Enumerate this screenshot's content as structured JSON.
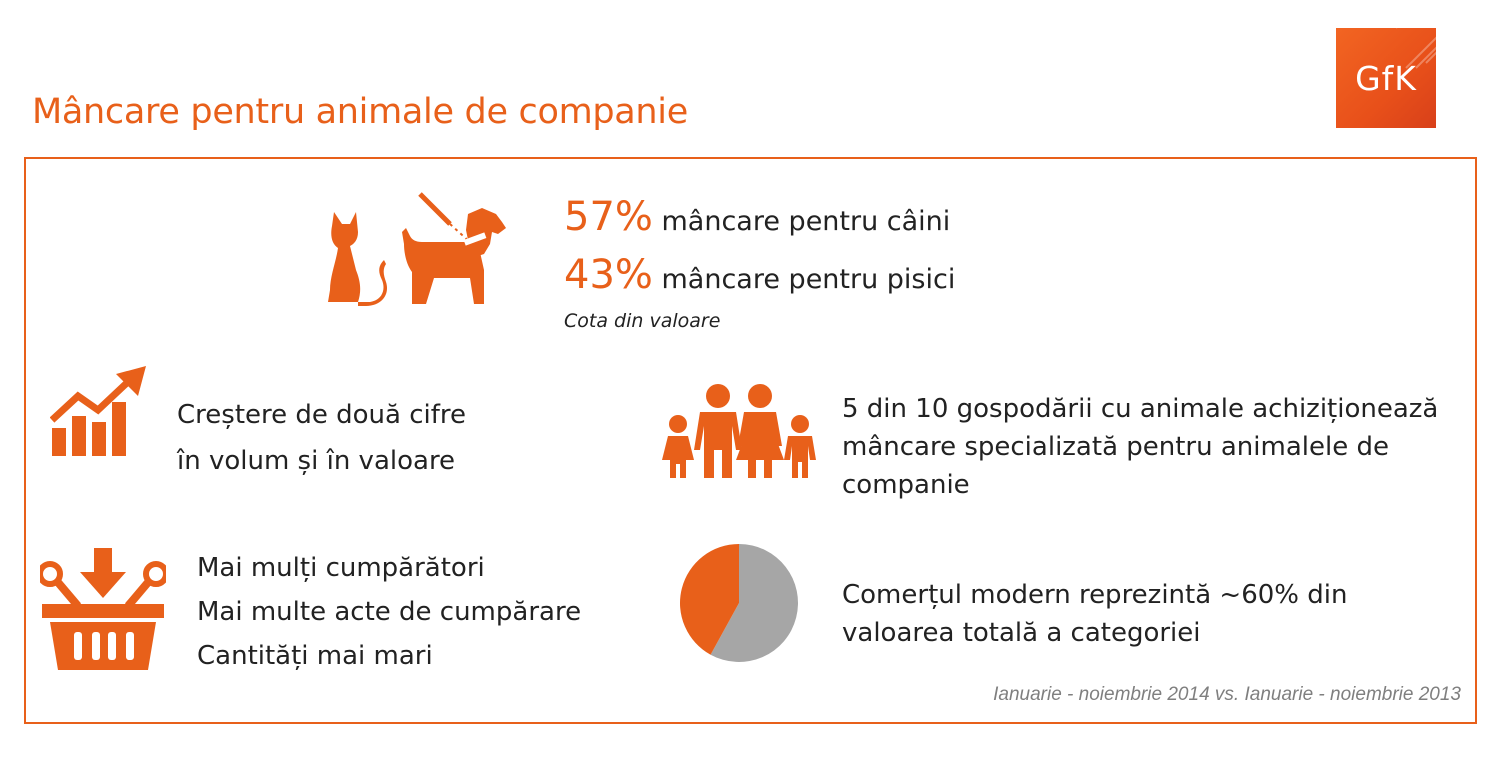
{
  "title": "Mâncare pentru animale de companie",
  "logo": {
    "text": "GfK",
    "color": "#f26522"
  },
  "colors": {
    "accent": "#e8601a",
    "pie_gray": "#a6a6a6"
  },
  "icons": [
    "cat-icon",
    "dog-leash-icon",
    "growth-chart-icon",
    "family-icon",
    "shopping-basket-icon",
    "pie-chart-icon"
  ],
  "pet_share": {
    "dogs": {
      "pct": "57%",
      "label": "mâncare pentru câini"
    },
    "cats": {
      "pct": "43%",
      "label": "mâncare pentru pisici"
    },
    "caption": "Cota din valoare"
  },
  "growth": {
    "lines": [
      "Creștere de două cifre",
      "în volum și în valoare"
    ]
  },
  "households": {
    "lines": [
      "5 din 10 gospodării cu animale achiziționează",
      "mâncare specializată pentru animalele de",
      "companie"
    ]
  },
  "shoppers": {
    "lines": [
      "Mai mulți cumpărători",
      "Mai multe acte de cumpărare",
      "Cantități mai mari"
    ]
  },
  "modern_trade": {
    "lines": [
      "Comerțul modern reprezintă ~60% din",
      "valoarea totală a categoriei"
    ],
    "modern_share": 0.58
  },
  "footer": "Ianuarie - noiembrie 2014 vs. Ianuarie - noiembrie 2013"
}
